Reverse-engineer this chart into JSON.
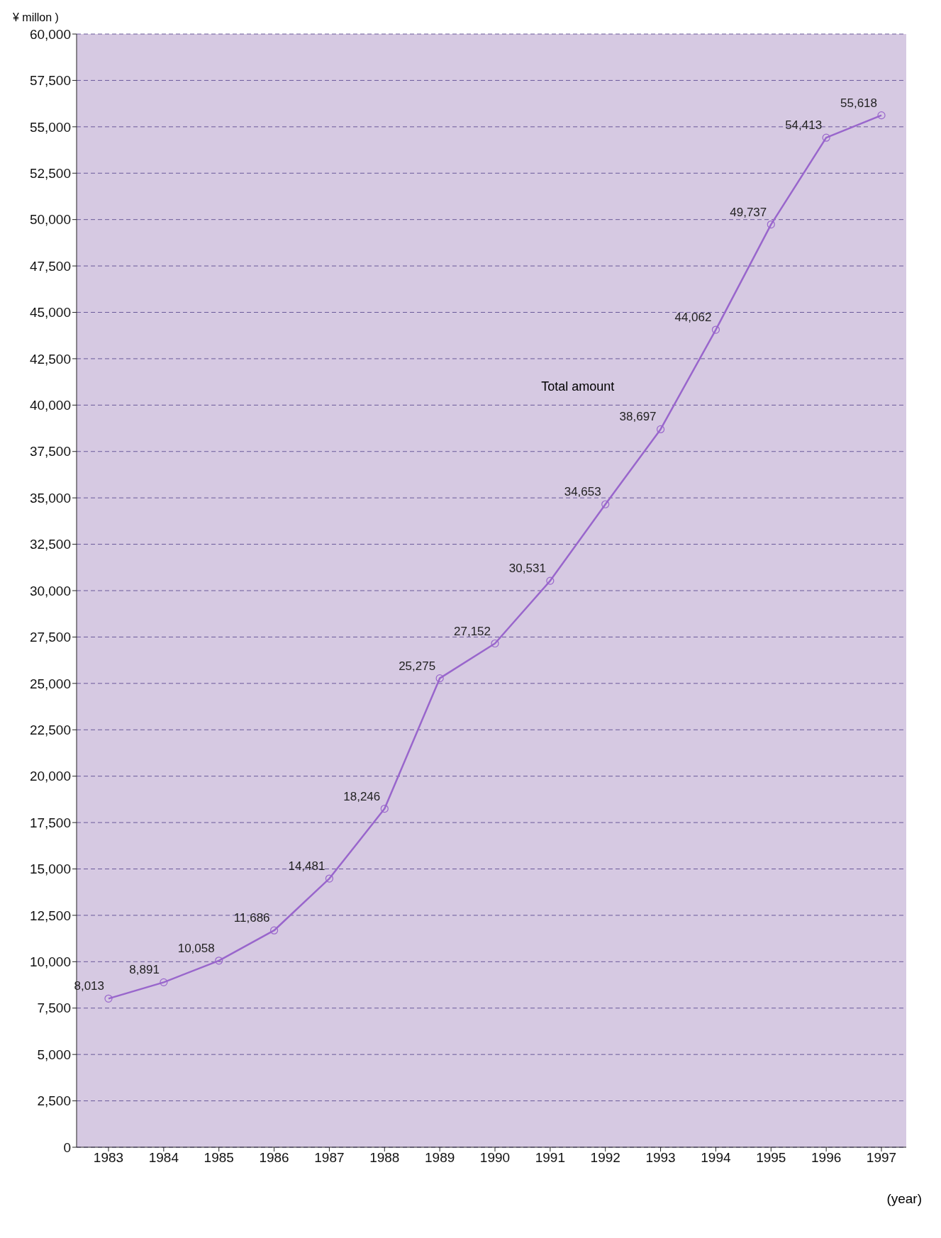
{
  "chart_data": {
    "type": "line",
    "ylabel": "¥ millon )",
    "xlabel": "(year)",
    "categories": [
      "1983",
      "1984",
      "1985",
      "1986",
      "1987",
      "1988",
      "1989",
      "1990",
      "1991",
      "1992",
      "1993",
      "1994",
      "1995",
      "1996",
      "1997"
    ],
    "series": [
      {
        "color": "#9966cc",
        "values": [
          8013,
          8891,
          10058,
          11686,
          14481,
          18246,
          25275,
          27152,
          30531,
          34653,
          38697,
          44062,
          49737,
          54413,
          55618
        ],
        "value_labels": [
          "8,013",
          "8,891",
          "10,058",
          "11,686",
          "14,481",
          "18,246",
          "25,275",
          "27,152",
          "30,531",
          "34,653",
          "38,697",
          "44,062",
          "49,737",
          "54,413",
          "55,618"
        ]
      }
    ],
    "ylim": [
      0,
      60000
    ],
    "yticks": [
      0,
      {
        "value": 2500,
        "label": "2,500"
      },
      {
        "value": 5000,
        "label": "5,000"
      },
      {
        "value": 7500,
        "label": "7,500"
      },
      {
        "value": 10000,
        "label": "10,000"
      },
      {
        "value": 12500,
        "label": "12,500"
      },
      {
        "value": 15000,
        "label": "15,000"
      },
      {
        "value": 17500,
        "label": "17,500"
      },
      {
        "value": 20000,
        "label": "20,000"
      },
      {
        "value": 22500,
        "label": "22,500"
      },
      {
        "value": 25000,
        "label": "25,000"
      },
      {
        "value": 27500,
        "label": "27,500"
      },
      {
        "value": 30000,
        "label": "30,000"
      },
      {
        "value": 32500,
        "label": "32,500"
      },
      {
        "value": 35000,
        "label": "35,000"
      },
      {
        "value": 37500,
        "label": "37,500"
      },
      {
        "value": 40000,
        "label": "40,000"
      },
      {
        "value": 42500,
        "label": "42,500"
      },
      {
        "value": 45000,
        "label": "45,000"
      },
      {
        "value": 47500,
        "label": "47,500"
      },
      {
        "value": 50000,
        "label": "50,000"
      },
      {
        "value": 52500,
        "label": "52,500"
      },
      {
        "value": 55000,
        "label": "55,000"
      },
      {
        "value": 57500,
        "label": "57,500"
      },
      {
        "value": 60000,
        "label": "60,000"
      }
    ],
    "grid": "y",
    "marker": "circle",
    "line_style": "solid",
    "annotations": [
      "Total amount"
    ]
  }
}
